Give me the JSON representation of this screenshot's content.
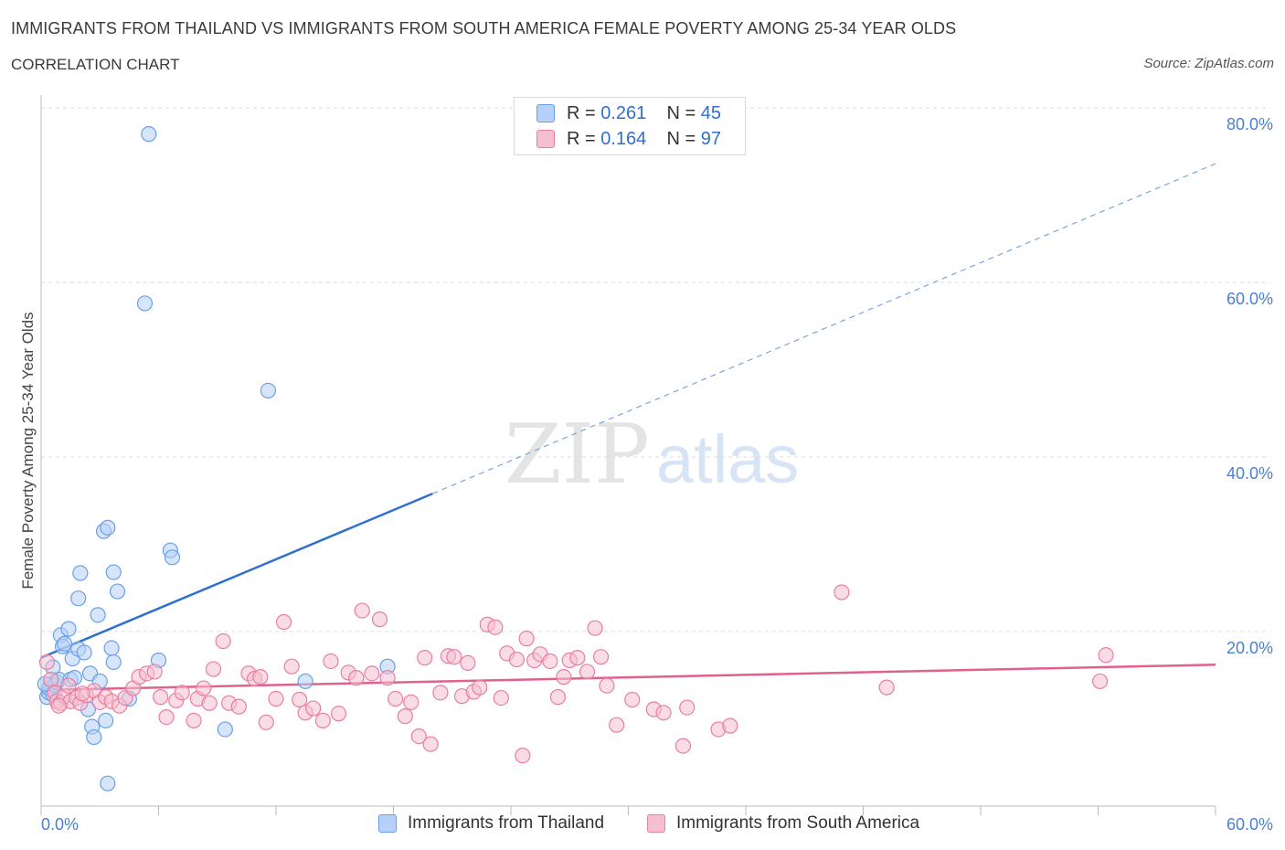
{
  "title": "IMMIGRANTS FROM THAILAND VS IMMIGRANTS FROM SOUTH AMERICA FEMALE POVERTY AMONG 25-34 YEAR OLDS",
  "subtitle": "CORRELATION CHART",
  "source": "Source: ZipAtlas.com",
  "watermark": {
    "zip": "ZIP",
    "atlas": "atlas"
  },
  "legend": {
    "r_label": "R =",
    "n_label": "N =",
    "thailand": {
      "r": "0.261",
      "n": "45"
    },
    "south_america": {
      "r": "0.164",
      "n": "97"
    }
  },
  "chart_data": {
    "type": "scatter",
    "xlabel": "",
    "ylabel": "Female Poverty Among 25-34 Year Olds",
    "xlim": [
      0,
      60
    ],
    "ylim": [
      0,
      80
    ],
    "x_tick_labels": [
      "0.0%",
      "60.0%"
    ],
    "y_tick_labels": [
      "20.0%",
      "40.0%",
      "60.0%",
      "80.0%"
    ],
    "y_ticks": [
      20,
      40,
      60,
      80
    ],
    "grid": true,
    "legend_position": "top-center",
    "series": [
      {
        "name": "Immigrants from Thailand",
        "color": "#6a9fe8",
        "fill": "#b6d0f7",
        "trend": {
          "x0": 0.0,
          "y0": 17.0,
          "x1": 20.0,
          "y1": 35.8,
          "dashed_to_x": 60.0,
          "dashed_to_y": 73.6
        },
        "points": [
          [
            0.3,
            12.5
          ],
          [
            0.4,
            13.0
          ],
          [
            0.5,
            14.0
          ],
          [
            0.4,
            13.5
          ],
          [
            0.6,
            12.8
          ],
          [
            0.7,
            13.9
          ],
          [
            0.8,
            14.2
          ],
          [
            0.9,
            14.5
          ],
          [
            0.6,
            15.9
          ],
          [
            1.0,
            19.6
          ],
          [
            1.1,
            18.3
          ],
          [
            1.2,
            18.6
          ],
          [
            1.4,
            20.3
          ],
          [
            1.5,
            14.5
          ],
          [
            1.6,
            16.9
          ],
          [
            1.7,
            14.7
          ],
          [
            1.9,
            23.8
          ],
          [
            1.9,
            18.0
          ],
          [
            2.0,
            26.7
          ],
          [
            2.2,
            17.6
          ],
          [
            2.4,
            11.1
          ],
          [
            2.5,
            15.2
          ],
          [
            2.6,
            9.1
          ],
          [
            2.7,
            7.9
          ],
          [
            2.9,
            21.9
          ],
          [
            3.0,
            14.3
          ],
          [
            3.2,
            31.5
          ],
          [
            3.3,
            9.8
          ],
          [
            3.4,
            31.9
          ],
          [
            3.4,
            2.6
          ],
          [
            3.6,
            18.1
          ],
          [
            3.7,
            26.8
          ],
          [
            3.7,
            16.5
          ],
          [
            3.9,
            24.6
          ],
          [
            4.5,
            12.3
          ],
          [
            5.5,
            77.0
          ],
          [
            5.3,
            57.6
          ],
          [
            6.0,
            16.7
          ],
          [
            6.6,
            29.3
          ],
          [
            6.7,
            28.5
          ],
          [
            9.4,
            8.8
          ],
          [
            11.6,
            47.6
          ],
          [
            13.5,
            14.3
          ],
          [
            17.7,
            16.0
          ],
          [
            0.2,
            14.0
          ]
        ]
      },
      {
        "name": "Immigrants from South America",
        "color": "#e87ea1",
        "fill": "#f6bfd0",
        "trend": {
          "x0": 0.0,
          "y0": 13.3,
          "x1": 60.0,
          "y1": 16.2
        },
        "points": [
          [
            0.3,
            16.5
          ],
          [
            0.5,
            14.5
          ],
          [
            0.7,
            13.0
          ],
          [
            0.8,
            12.0
          ],
          [
            1.0,
            11.8
          ],
          [
            1.2,
            12.6
          ],
          [
            1.5,
            12.0
          ],
          [
            1.8,
            12.4
          ],
          [
            2.0,
            11.8
          ],
          [
            2.3,
            12.7
          ],
          [
            2.7,
            13.2
          ],
          [
            3.0,
            11.9
          ],
          [
            3.3,
            12.5
          ],
          [
            3.6,
            12.0
          ],
          [
            4.0,
            11.5
          ],
          [
            4.3,
            12.4
          ],
          [
            4.7,
            13.5
          ],
          [
            5.0,
            14.8
          ],
          [
            5.4,
            15.2
          ],
          [
            5.8,
            15.4
          ],
          [
            6.1,
            12.5
          ],
          [
            6.4,
            10.2
          ],
          [
            6.9,
            12.1
          ],
          [
            7.2,
            13.0
          ],
          [
            7.8,
            9.8
          ],
          [
            8.0,
            12.3
          ],
          [
            8.3,
            13.5
          ],
          [
            8.6,
            11.8
          ],
          [
            8.8,
            15.7
          ],
          [
            9.3,
            18.9
          ],
          [
            9.6,
            11.8
          ],
          [
            10.1,
            11.4
          ],
          [
            10.6,
            15.2
          ],
          [
            10.9,
            14.6
          ],
          [
            11.2,
            14.8
          ],
          [
            11.5,
            9.6
          ],
          [
            12.0,
            12.3
          ],
          [
            12.4,
            21.1
          ],
          [
            12.8,
            16.0
          ],
          [
            13.2,
            12.2
          ],
          [
            13.5,
            10.7
          ],
          [
            13.9,
            11.2
          ],
          [
            14.4,
            9.8
          ],
          [
            14.8,
            16.6
          ],
          [
            15.2,
            10.6
          ],
          [
            15.7,
            15.3
          ],
          [
            16.1,
            14.7
          ],
          [
            16.4,
            22.4
          ],
          [
            16.9,
            15.2
          ],
          [
            17.3,
            21.4
          ],
          [
            17.7,
            14.7
          ],
          [
            18.1,
            12.3
          ],
          [
            18.6,
            10.3
          ],
          [
            18.9,
            11.9
          ],
          [
            19.3,
            8.0
          ],
          [
            19.6,
            17.0
          ],
          [
            19.9,
            7.1
          ],
          [
            20.4,
            13.0
          ],
          [
            20.8,
            17.2
          ],
          [
            21.1,
            17.1
          ],
          [
            21.5,
            12.6
          ],
          [
            21.8,
            16.4
          ],
          [
            22.1,
            13.1
          ],
          [
            22.4,
            13.6
          ],
          [
            22.8,
            20.8
          ],
          [
            23.2,
            20.5
          ],
          [
            23.5,
            12.4
          ],
          [
            23.8,
            17.5
          ],
          [
            24.3,
            16.8
          ],
          [
            24.6,
            5.8
          ],
          [
            24.8,
            19.2
          ],
          [
            25.2,
            16.7
          ],
          [
            25.5,
            17.4
          ],
          [
            26.0,
            16.6
          ],
          [
            26.4,
            12.5
          ],
          [
            26.7,
            14.8
          ],
          [
            27.0,
            16.7
          ],
          [
            27.4,
            17.0
          ],
          [
            27.9,
            15.4
          ],
          [
            28.3,
            20.4
          ],
          [
            28.6,
            17.1
          ],
          [
            28.9,
            13.8
          ],
          [
            29.4,
            9.3
          ],
          [
            30.2,
            12.2
          ],
          [
            31.3,
            11.1
          ],
          [
            31.8,
            10.7
          ],
          [
            32.8,
            6.9
          ],
          [
            33.0,
            11.3
          ],
          [
            34.6,
            8.8
          ],
          [
            35.2,
            9.2
          ],
          [
            40.9,
            24.5
          ],
          [
            43.2,
            13.6
          ],
          [
            54.1,
            14.3
          ],
          [
            54.4,
            17.3
          ],
          [
            0.9,
            11.5
          ],
          [
            1.4,
            13.8
          ],
          [
            2.1,
            12.9
          ]
        ]
      }
    ]
  }
}
